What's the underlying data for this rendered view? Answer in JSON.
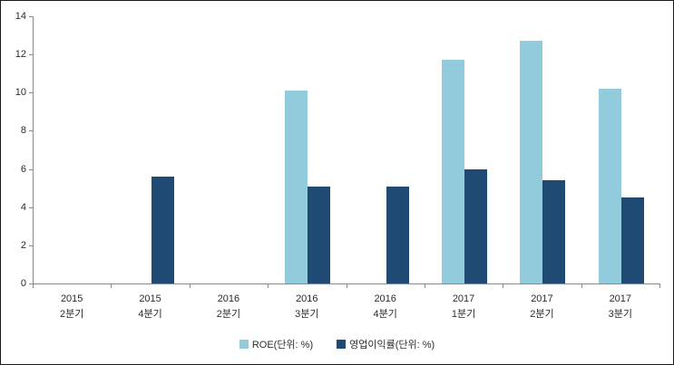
{
  "chart_data": {
    "type": "bar",
    "categories": [
      {
        "year": "2015",
        "quarter": "2분기"
      },
      {
        "year": "2015",
        "quarter": "4분기"
      },
      {
        "year": "2016",
        "quarter": "2분기"
      },
      {
        "year": "2016",
        "quarter": "3분기"
      },
      {
        "year": "2016",
        "quarter": "4분기"
      },
      {
        "year": "2017",
        "quarter": "1분기"
      },
      {
        "year": "2017",
        "quarter": "2분기"
      },
      {
        "year": "2017",
        "quarter": "3분기"
      }
    ],
    "series": [
      {
        "name": "ROE(단위: %)",
        "color": "#92CBDC",
        "values": [
          0,
          0,
          0,
          10.1,
          0,
          11.7,
          12.7,
          10.2
        ]
      },
      {
        "name": "영업이익률(단위: %)",
        "color": "#1F4A73",
        "values": [
          0,
          5.6,
          0,
          5.1,
          5.1,
          6.0,
          5.4,
          4.5
        ]
      }
    ],
    "title": "",
    "xlabel": "",
    "ylabel": "",
    "ylim": [
      0,
      14
    ],
    "yticks": [
      0,
      2,
      4,
      6,
      8,
      10,
      12,
      14
    ],
    "grid": false,
    "legend_position": "bottom",
    "axis_color": "#8a8a8a",
    "text_color": "#2b2b2b"
  }
}
